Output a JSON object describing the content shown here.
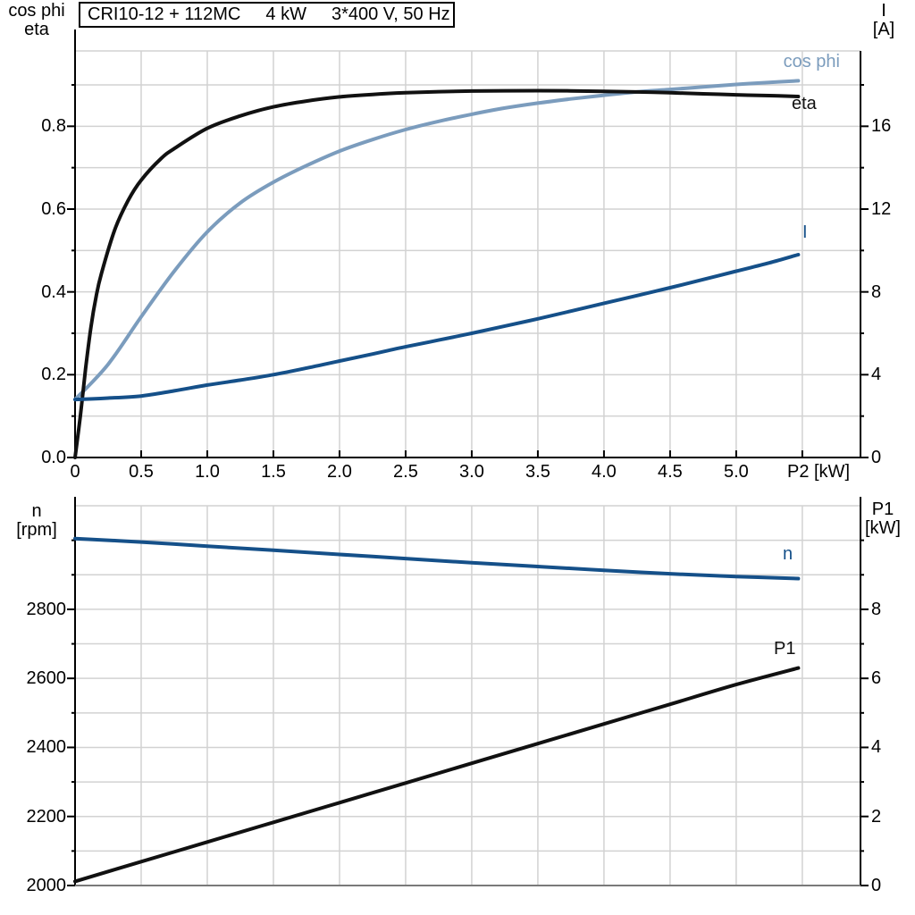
{
  "title": {
    "parts": [
      "CRI10-12 + 112MC",
      "4 kW",
      "3*400 V, 50 Hz"
    ]
  },
  "axis_headers": {
    "top_left": [
      "cos phi",
      "eta"
    ],
    "top_right": [
      "I",
      "[A]"
    ],
    "bottom_left": [
      "n",
      "[rpm]"
    ],
    "bottom_right": [
      "P1",
      "[kW]"
    ]
  },
  "colors": {
    "light_blue": "#7b9cbd",
    "dark_blue": "#155089",
    "black": "#111111",
    "grid": "#d2d2d2",
    "axis": "#000000",
    "bottom_axis_2": "#7a7a7a"
  },
  "chart_data": [
    {
      "type": "line",
      "title": "CRI10-12 + 112MC  4 kW  3*400 V, 50 Hz",
      "xlabel": "P2 [kW]",
      "xlim": [
        0,
        5.94
      ],
      "x_ticks": {
        "values": [
          0,
          0.5,
          1,
          1.5,
          2,
          2.5,
          3,
          3.5,
          4,
          4.5,
          5
        ],
        "labels": [
          "0",
          "0.5",
          "1.0",
          "1.5",
          "2.0",
          "2.5",
          "3.0",
          "3.5",
          "4.0",
          "4.5",
          "5.0"
        ],
        "minor": [
          5.5
        ]
      },
      "x_grid": [
        0.5,
        1,
        1.5,
        2,
        2.5,
        3,
        3.5,
        4,
        4.5,
        5,
        5.5
      ],
      "left_axis": {
        "name": "cos phi / eta",
        "lim": [
          0,
          0.982
        ],
        "ticks": [
          0,
          0.2,
          0.4,
          0.6,
          0.8
        ],
        "tick_labels": [
          "0.0",
          "0.2",
          "0.4",
          "0.6",
          "0.8"
        ],
        "minor": [
          0.1,
          0.3,
          0.5,
          0.7,
          0.9
        ]
      },
      "left_grid": [
        0.1,
        0.2,
        0.3,
        0.4,
        0.5,
        0.6,
        0.7,
        0.8,
        0.9
      ],
      "right_axis": {
        "name": "I [A]",
        "lim": [
          0,
          19.64
        ],
        "ticks": [
          0,
          4,
          8,
          12,
          16
        ],
        "tick_labels": [
          "0",
          "4",
          "8",
          "12",
          "16"
        ],
        "minor": [
          2,
          6,
          10,
          14,
          18
        ]
      },
      "series": [
        {
          "name": "cos phi",
          "axis": "left",
          "color_key": "light_blue",
          "points": [
            [
              0,
              0.14
            ],
            [
              0.25,
              0.225
            ],
            [
              0.5,
              0.34
            ],
            [
              0.75,
              0.45
            ],
            [
              1,
              0.545
            ],
            [
              1.25,
              0.615
            ],
            [
              1.5,
              0.665
            ],
            [
              1.75,
              0.705
            ],
            [
              2,
              0.74
            ],
            [
              2.25,
              0.768
            ],
            [
              2.5,
              0.792
            ],
            [
              2.75,
              0.812
            ],
            [
              3,
              0.829
            ],
            [
              3.25,
              0.844
            ],
            [
              3.5,
              0.856
            ],
            [
              3.75,
              0.866
            ],
            [
              4,
              0.875
            ],
            [
              4.25,
              0.883
            ],
            [
              4.5,
              0.889
            ],
            [
              4.75,
              0.895
            ],
            [
              5,
              0.901
            ],
            [
              5.25,
              0.906
            ],
            [
              5.47,
              0.91
            ]
          ]
        },
        {
          "name": "eta",
          "axis": "left",
          "color_key": "black",
          "points": [
            [
              0,
              0
            ],
            [
              0.04,
              0.1
            ],
            [
              0.08,
              0.215
            ],
            [
              0.12,
              0.315
            ],
            [
              0.16,
              0.39
            ],
            [
              0.2,
              0.445
            ],
            [
              0.3,
              0.55
            ],
            [
              0.4,
              0.62
            ],
            [
              0.5,
              0.67
            ],
            [
              0.65,
              0.722
            ],
            [
              0.75,
              0.746
            ],
            [
              1,
              0.795
            ],
            [
              1.25,
              0.825
            ],
            [
              1.5,
              0.847
            ],
            [
              1.75,
              0.861
            ],
            [
              2,
              0.871
            ],
            [
              2.25,
              0.877
            ],
            [
              2.5,
              0.881
            ],
            [
              2.75,
              0.8835
            ],
            [
              3,
              0.885
            ],
            [
              3.25,
              0.8858
            ],
            [
              3.5,
              0.886
            ],
            [
              3.75,
              0.8855
            ],
            [
              4,
              0.8845
            ],
            [
              4.25,
              0.883
            ],
            [
              4.5,
              0.881
            ],
            [
              4.75,
              0.8785
            ],
            [
              5,
              0.876
            ],
            [
              5.25,
              0.874
            ],
            [
              5.47,
              0.872
            ]
          ]
        },
        {
          "name": "I",
          "axis": "right",
          "color_key": "dark_blue",
          "points": [
            [
              0,
              2.8
            ],
            [
              0.25,
              2.87
            ],
            [
              0.5,
              2.97
            ],
            [
              0.75,
              3.22
            ],
            [
              1,
              3.5
            ],
            [
              1.25,
              3.74
            ],
            [
              1.5,
              4.0
            ],
            [
              1.75,
              4.32
            ],
            [
              2,
              4.66
            ],
            [
              2.25,
              5.0
            ],
            [
              2.5,
              5.35
            ],
            [
              2.75,
              5.67
            ],
            [
              3,
              6.0
            ],
            [
              3.25,
              6.35
            ],
            [
              3.5,
              6.7
            ],
            [
              3.75,
              7.07
            ],
            [
              4,
              7.45
            ],
            [
              4.25,
              7.82
            ],
            [
              4.5,
              8.2
            ],
            [
              4.75,
              8.6
            ],
            [
              5,
              9.0
            ],
            [
              5.25,
              9.4
            ],
            [
              5.47,
              9.8
            ]
          ]
        }
      ]
    },
    {
      "type": "line",
      "title": "",
      "xlabel": "",
      "xlim": [
        0,
        5.94
      ],
      "x_grid": [
        0.5,
        1,
        1.5,
        2,
        2.5,
        3,
        3.5,
        4,
        4.5,
        5,
        5.5
      ],
      "left_axis": {
        "name": "n [rpm]",
        "lim": [
          2000,
          3100
        ],
        "ticks": [
          2000,
          2200,
          2400,
          2600,
          2800
        ],
        "tick_labels": [
          "2000",
          "2200",
          "2400",
          "2600",
          "2800"
        ],
        "minor": [
          2100,
          2300,
          2500,
          2700,
          2900,
          3000
        ]
      },
      "left_grid": [
        2100,
        2200,
        2300,
        2400,
        2500,
        2600,
        2700,
        2800,
        2900,
        3000
      ],
      "right_axis": {
        "name": "P1 [kW]",
        "lim": [
          0,
          11
        ],
        "ticks": [
          0,
          2,
          4,
          6,
          8
        ],
        "tick_labels": [
          "0",
          "2",
          "4",
          "6",
          "8"
        ],
        "minor": [
          1,
          3,
          5,
          7,
          9,
          10
        ]
      },
      "series": [
        {
          "name": "n",
          "axis": "left",
          "color_key": "dark_blue",
          "points": [
            [
              0,
              3005
            ],
            [
              0.5,
              2995
            ],
            [
              1,
              2983
            ],
            [
              1.5,
              2971
            ],
            [
              2,
              2959
            ],
            [
              2.5,
              2947
            ],
            [
              3,
              2935
            ],
            [
              3.5,
              2924
            ],
            [
              4,
              2913
            ],
            [
              4.5,
              2903
            ],
            [
              5,
              2895
            ],
            [
              5.47,
              2889
            ]
          ]
        },
        {
          "name": "P1",
          "axis": "right",
          "color_key": "black",
          "points": [
            [
              0,
              0.12
            ],
            [
              0.5,
              0.69
            ],
            [
              1,
              1.26
            ],
            [
              1.5,
              1.83
            ],
            [
              2,
              2.4
            ],
            [
              2.5,
              2.97
            ],
            [
              3,
              3.54
            ],
            [
              3.5,
              4.11
            ],
            [
              4,
              4.68
            ],
            [
              4.5,
              5.25
            ],
            [
              5,
              5.82
            ],
            [
              5.47,
              6.3
            ]
          ]
        }
      ]
    }
  ]
}
